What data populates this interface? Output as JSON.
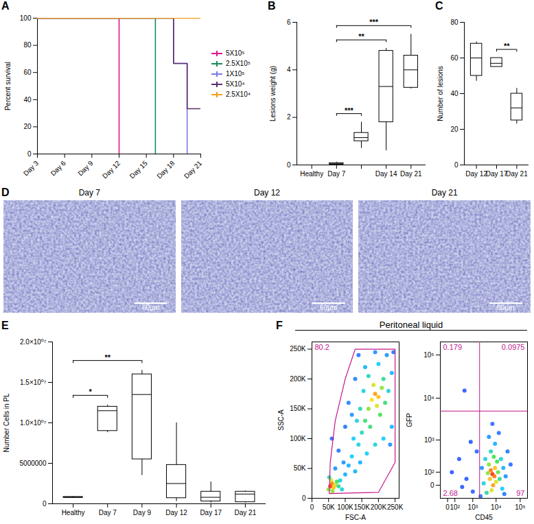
{
  "chart_data": [
    {
      "panel": "A",
      "type": "line",
      "y_label": "Percent survival",
      "legend": "right",
      "xlim": [
        3,
        21
      ],
      "xticks": [
        {
          "value": 3,
          "label": "Day 3"
        },
        {
          "value": 6,
          "label": "Day 6"
        },
        {
          "value": 9,
          "label": "Day 9"
        },
        {
          "value": 12,
          "label": "Day 12"
        },
        {
          "value": 15,
          "label": "Day 15"
        },
        {
          "value": 18,
          "label": "Day 18"
        },
        {
          "value": 21,
          "label": "Day 21"
        }
      ],
      "ylim": [
        0,
        100
      ],
      "yticks": [
        0,
        20,
        40,
        60,
        80,
        100
      ],
      "series": [
        {
          "name": "5X10⁵",
          "color": "#e0148c",
          "x": [
            3,
            12,
            12
          ],
          "values": [
            100,
            100,
            0
          ]
        },
        {
          "name": "2.5X10⁵",
          "color": "#1a8a5a",
          "x": [
            3,
            16,
            16
          ],
          "values": [
            100,
            100,
            0
          ]
        },
        {
          "name": "1X10⁵",
          "color": "#7a7ae8",
          "x": [
            3,
            18,
            18,
            19.5,
            19.5
          ],
          "values": [
            100,
            100,
            66.7,
            66.7,
            0
          ]
        },
        {
          "name": "5X10⁴",
          "color": "#5b2e6e",
          "x": [
            3,
            18,
            18,
            19.5,
            19.5,
            21
          ],
          "values": [
            100,
            100,
            66.7,
            66.7,
            33.3,
            33.3
          ]
        },
        {
          "name": "2.5X10⁴",
          "color": "#f39c1e",
          "x": [
            3,
            21
          ],
          "values": [
            100,
            100
          ]
        }
      ]
    },
    {
      "panel": "B",
      "type": "box",
      "y_label": "Lesions weight (g)",
      "categories": [
        "Healthy",
        "Day 7",
        null,
        "Day 14",
        "Day 21"
      ],
      "values": [
        [
          0,
          0,
          0,
          0,
          0
        ],
        [
          0,
          0.02,
          0.05,
          0.08,
          0.12
        ],
        [
          0.7,
          1.0,
          1.15,
          1.35,
          1.8
        ],
        [
          0.6,
          1.8,
          3.3,
          4.8,
          4.9
        ],
        [
          3.2,
          3.25,
          4.0,
          4.6,
          5.5
        ]
      ],
      "ylim": [
        0,
        6
      ],
      "yticks": [
        0,
        2,
        4,
        6
      ],
      "annotations": [
        {
          "from": 1,
          "to": 2,
          "label": "***"
        },
        {
          "from": 1,
          "to": 3,
          "label": "**"
        },
        {
          "from": 1,
          "to": 4,
          "label": "***"
        }
      ]
    },
    {
      "panel": "C",
      "type": "box",
      "y_label": "Number of lesions",
      "categories": [
        "Day 12",
        "Day 17",
        "Day 21"
      ],
      "values": [
        [
          47,
          50,
          60,
          68,
          69
        ],
        [
          55,
          55,
          57,
          60,
          60
        ],
        [
          23,
          25,
          32,
          40,
          43
        ]
      ],
      "ylim": [
        0,
        80
      ],
      "yticks": [
        0,
        20,
        40,
        60,
        80
      ],
      "annotations": [
        {
          "from": 1,
          "to": 2,
          "label": "**"
        }
      ]
    },
    {
      "panel": "D",
      "type": "image",
      "images": [
        {
          "title": "Day 7",
          "scale_bar": "60µm"
        },
        {
          "title": "Day 12",
          "scale_bar": "60µm"
        },
        {
          "title": "Day 21",
          "scale_bar": "60µm"
        }
      ]
    },
    {
      "panel": "E",
      "type": "box",
      "y_label": "Number Cells in PL",
      "categories": [
        "Healthy",
        "Day 7",
        "Day 9",
        "Day 12",
        "Day 17",
        "Day 21"
      ],
      "values": [
        [
          700000,
          750000,
          800000,
          850000,
          900000
        ],
        [
          8800000,
          9000000,
          11500000,
          12000000,
          12200000
        ],
        [
          3500000,
          5500000,
          13500000,
          16000000,
          16500000
        ],
        [
          300000,
          700000,
          2500000,
          4800000,
          10000000
        ],
        [
          100000,
          300000,
          800000,
          1500000,
          2700000
        ],
        [
          100000,
          200000,
          1200000,
          1500000,
          1600000
        ]
      ],
      "ylim": [
        0,
        20000000
      ],
      "yticks": [
        0,
        5000000,
        {
          "value": 10000000,
          "label": "1.0×10⁰⁷"
        },
        {
          "value": 15000000,
          "label": "1.5×10⁰⁷"
        },
        {
          "value": 20000000,
          "label": "2.0×10⁰⁷"
        }
      ],
      "annotations": [
        {
          "from": 0,
          "to": 1,
          "label": "*"
        },
        {
          "from": 0,
          "to": 2,
          "label": "**"
        }
      ]
    },
    {
      "panel": "F",
      "type": "flow",
      "title": "Peritoneal liquid",
      "plots": [
        {
          "type": "scatter",
          "x_label": "FSC-A",
          "y_label": "SSC-A",
          "xlim": [
            0,
            262144
          ],
          "ylim": [
            0,
            262144
          ],
          "xticks": [
            0,
            {
              "value": 50000,
              "label": "50K"
            },
            {
              "value": 100000,
              "label": "100K"
            },
            {
              "value": 150000,
              "label": "150K"
            },
            {
              "value": 200000,
              "label": "200K"
            },
            {
              "value": 250000,
              "label": "250K"
            }
          ],
          "yticks": [
            0,
            {
              "value": 50000,
              "label": "50K"
            },
            {
              "value": 100000,
              "label": "100K"
            },
            {
              "value": 150000,
              "label": "150K"
            },
            {
              "value": 200000,
              "label": "200K"
            },
            {
              "value": 250000,
              "label": "250K"
            }
          ],
          "points": [
            [
              55000,
              20000,
              1
            ],
            [
              60000,
              25000,
              0.9
            ],
            [
              65000,
              18000,
              0.8
            ],
            [
              58000,
              30000,
              0.7
            ],
            [
              70000,
              22000,
              0.7
            ],
            [
              50000,
              15000,
              0.6
            ],
            [
              75000,
              28000,
              0.5
            ],
            [
              62000,
              12000,
              0.6
            ],
            [
              80000,
              20000,
              0.4
            ],
            [
              52000,
              35000,
              0.4
            ],
            [
              85000,
              30000,
              0.3
            ],
            [
              90000,
              15000,
              0.3
            ],
            [
              100000,
              40000,
              0.2
            ],
            [
              110000,
              55000,
              0.2
            ],
            [
              120000,
              70000,
              0.25
            ],
            [
              95000,
              60000,
              0.15
            ],
            [
              130000,
              45000,
              0.2
            ],
            [
              140000,
              90000,
              0.3
            ],
            [
              150000,
              110000,
              0.35
            ],
            [
              160000,
              130000,
              0.45
            ],
            [
              125000,
              100000,
              0.25
            ],
            [
              135000,
              130000,
              0.3
            ],
            [
              145000,
              150000,
              0.35
            ],
            [
              170000,
              150000,
              0.6
            ],
            [
              180000,
              165000,
              0.75
            ],
            [
              190000,
              175000,
              0.85
            ],
            [
              200000,
              170000,
              0.8
            ],
            [
              185000,
              190000,
              0.7
            ],
            [
              195000,
              155000,
              0.7
            ],
            [
              210000,
              185000,
              0.6
            ],
            [
              175000,
              120000,
              0.45
            ],
            [
              205000,
              140000,
              0.5
            ],
            [
              220000,
              160000,
              0.45
            ],
            [
              215000,
              200000,
              0.4
            ],
            [
              230000,
              180000,
              0.3
            ],
            [
              240000,
              210000,
              0.2
            ],
            [
              200000,
              225000,
              0.25
            ],
            [
              170000,
              205000,
              0.35
            ],
            [
              155000,
              180000,
              0.3
            ],
            [
              160000,
              220000,
              0.2
            ],
            [
              225000,
              240000,
              0.15
            ],
            [
              190000,
              245000,
              0.15
            ],
            [
              130000,
              200000,
              0.12
            ],
            [
              110000,
              160000,
              0.12
            ],
            [
              100000,
              120000,
              0.1
            ],
            [
              240000,
              120000,
              0.2
            ],
            [
              235000,
              90000,
              0.15
            ],
            [
              215000,
              100000,
              0.25
            ],
            [
              190000,
              90000,
              0.3
            ],
            [
              165000,
              75000,
              0.25
            ],
            [
              145000,
              60000,
              0.2
            ],
            [
              120000,
              140000,
              0.15
            ],
            [
              245000,
              245000,
              0.1
            ],
            [
              80000,
              80000,
              0.1
            ],
            [
              70000,
              50000,
              0.15
            ],
            [
              60000,
              100000,
              0.08
            ],
            [
              140000,
              240000,
              0.1
            ]
          ],
          "gate": [
            [
              52000,
              8000
            ],
            [
              55000,
              60000
            ],
            [
              70000,
              130000
            ],
            [
              100000,
              200000
            ],
            [
              130000,
              250000
            ],
            [
              250000,
              250000
            ],
            [
              250000,
              60000
            ],
            [
              200000,
              10000
            ],
            [
              52000,
              8000
            ]
          ],
          "gate_label": "80.2"
        },
        {
          "type": "scatter",
          "log": true,
          "x_label": "CD45",
          "y_label": "GFP",
          "xlim": [
            -100,
            200000
          ],
          "ylim": [
            -100,
            200000
          ],
          "xticks": [
            0,
            {
              "value": 100,
              "label": "10²"
            },
            {
              "value": 1000,
              "label": "10³"
            },
            {
              "value": 10000,
              "label": "10⁴"
            },
            {
              "value": 100000,
              "label": "10⁵"
            }
          ],
          "yticks": [
            0,
            {
              "value": 100,
              "label": "10²"
            },
            {
              "value": 1000,
              "label": "10³"
            },
            {
              "value": 10000,
              "label": "10⁴"
            },
            {
              "value": 100000,
              "label": "10⁵"
            }
          ],
          "points": [
            [
              7000,
              80,
              1
            ],
            [
              6000,
              120,
              0.9
            ],
            [
              8500,
              60,
              0.9
            ],
            [
              5500,
              40,
              0.8
            ],
            [
              9000,
              150,
              0.8
            ],
            [
              7500,
              0,
              0.85
            ],
            [
              6500,
              -30,
              0.7
            ],
            [
              10000,
              20,
              0.7
            ],
            [
              5000,
              200,
              0.6
            ],
            [
              11000,
              250,
              0.5
            ],
            [
              4500,
              90,
              0.6
            ],
            [
              12000,
              100,
              0.55
            ],
            [
              4000,
              -50,
              0.4
            ],
            [
              14000,
              40,
              0.4
            ],
            [
              8000,
              350,
              0.5
            ],
            [
              6000,
              500,
              0.35
            ],
            [
              3500,
              300,
              0.3
            ],
            [
              16000,
              300,
              0.3
            ],
            [
              18000,
              -20,
              0.25
            ],
            [
              3000,
              10,
              0.3
            ],
            [
              20000,
              150,
              0.2
            ],
            [
              9000,
              800,
              0.2
            ],
            [
              5000,
              1200,
              0.15
            ],
            [
              2500,
              150,
              0.15
            ],
            [
              25000,
              60,
              0.15
            ],
            [
              13000,
              1500,
              0.1
            ],
            [
              30000,
              500,
              0.1
            ],
            [
              7000,
              2500,
              0.08
            ],
            [
              2200,
              -80,
              0.1
            ],
            [
              40000,
              200,
              0.08
            ],
            [
              22000,
              -60,
              0.1
            ],
            [
              500,
              40,
              0.05
            ],
            [
              200,
              300,
              0.05
            ],
            [
              1000,
              -40,
              0.06
            ],
            [
              300,
              -10,
              0.05
            ],
            [
              800,
              900,
              0.05
            ],
            [
              50,
              100,
              0.05
            ],
            [
              1500,
              500,
              0.07
            ],
            [
              400,
              15000,
              0.05
            ]
          ],
          "quadrant_gate": [
            2000,
            5000
          ],
          "quadrants": {
            "top_left": 0.179,
            "top_right": 0.0975,
            "bottom_left": 2.68,
            "bottom_right": 97
          }
        }
      ]
    }
  ]
}
